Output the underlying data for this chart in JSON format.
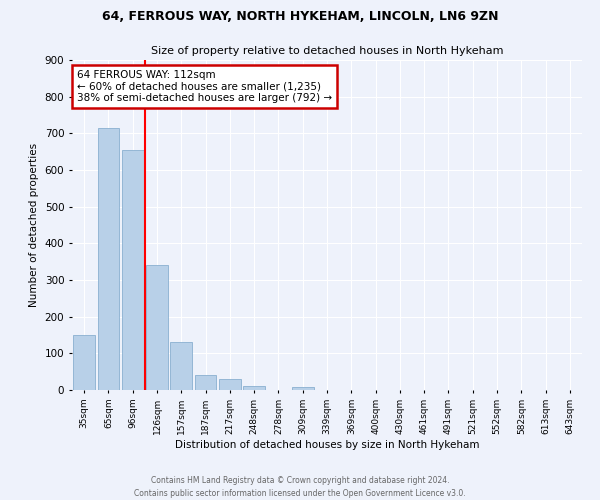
{
  "title1": "64, FERROUS WAY, NORTH HYKEHAM, LINCOLN, LN6 9ZN",
  "title2": "Size of property relative to detached houses in North Hykeham",
  "xlabel": "Distribution of detached houses by size in North Hykeham",
  "ylabel": "Number of detached properties",
  "footnote1": "Contains HM Land Registry data © Crown copyright and database right 2024.",
  "footnote2": "Contains public sector information licensed under the Open Government Licence v3.0.",
  "categories": [
    "35sqm",
    "65sqm",
    "96sqm",
    "126sqm",
    "157sqm",
    "187sqm",
    "217sqm",
    "248sqm",
    "278sqm",
    "309sqm",
    "339sqm",
    "369sqm",
    "400sqm",
    "430sqm",
    "461sqm",
    "491sqm",
    "521sqm",
    "552sqm",
    "582sqm",
    "613sqm",
    "643sqm"
  ],
  "values": [
    150,
    715,
    655,
    340,
    130,
    42,
    30,
    12,
    0,
    8,
    0,
    0,
    0,
    0,
    0,
    0,
    0,
    0,
    0,
    0,
    0
  ],
  "bar_color": "#b8d0e8",
  "bar_edge_color": "#8ab0d0",
  "red_line_x": 2.5,
  "annotation_text": "64 FERROUS WAY: 112sqm\n← 60% of detached houses are smaller (1,235)\n38% of semi-detached houses are larger (792) →",
  "annotation_box_color": "#ffffff",
  "annotation_box_edge_color": "#cc0000",
  "background_color": "#eef2fb",
  "grid_color": "#ffffff",
  "ylim": [
    0,
    900
  ],
  "yticks": [
    0,
    100,
    200,
    300,
    400,
    500,
    600,
    700,
    800,
    900
  ]
}
